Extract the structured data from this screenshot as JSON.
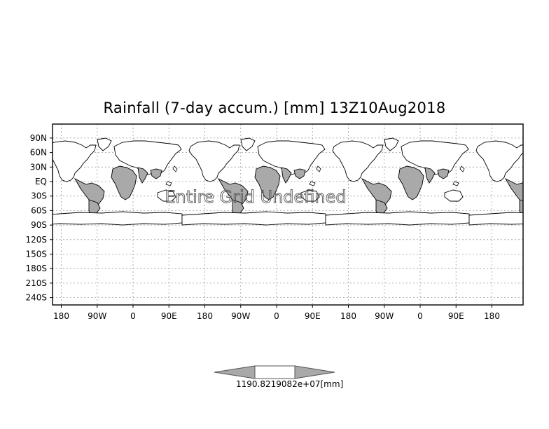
{
  "title": "Rainfall (7-day accum.) [mm] 13Z10Aug2018",
  "overlay_text": "Entire Grid Undefined",
  "colors": {
    "land": "#a9a9a9",
    "coast": "#000000",
    "grid": "#9a9a9a",
    "frame": "#000000",
    "colorbar_left": "#a9a9a9",
    "colorbar_mid": "#ffffff",
    "colorbar_right": "#a9a9a9"
  },
  "map": {
    "projection": "latlon",
    "longitude_range": [
      -210,
      440
    ],
    "latitude_range": [
      -250,
      110
    ],
    "gridlines": true,
    "grid_style": "dotted",
    "y_ticks": [
      {
        "lat": 90,
        "label": "90N"
      },
      {
        "lat": 60,
        "label": "60N"
      },
      {
        "lat": 30,
        "label": "30N"
      },
      {
        "lat": 0,
        "label": "EQ"
      },
      {
        "lat": -30,
        "label": "30S"
      },
      {
        "lat": -60,
        "label": "60S"
      },
      {
        "lat": -90,
        "label": "90S"
      },
      {
        "lat": -120,
        "label": "120S"
      },
      {
        "lat": -150,
        "label": "150S"
      },
      {
        "lat": -180,
        "label": "180S"
      },
      {
        "lat": -210,
        "label": "210S"
      },
      {
        "lat": -240,
        "label": "240S"
      }
    ],
    "x_ticks": [
      {
        "lon": -180,
        "label": "180"
      },
      {
        "lon": -90,
        "label": "90W"
      },
      {
        "lon": 0,
        "label": "0"
      },
      {
        "lon": 90,
        "label": "90E"
      },
      {
        "lon": 180,
        "label": "180"
      },
      {
        "lon": 270,
        "label": "90W"
      },
      {
        "lon": 360,
        "label": "0"
      },
      {
        "lon": 450,
        "label": "90E"
      },
      {
        "lon": 540,
        "label": "180"
      },
      {
        "lon": 630,
        "label": "90W"
      },
      {
        "lon": 720,
        "label": "0"
      },
      {
        "lon": 810,
        "label": "90E"
      },
      {
        "lon": 900,
        "label": "180"
      }
    ]
  },
  "colorbar": {
    "label_text": "1190.8219082e+07[mm]",
    "overlapping_values": [
      "1190.82",
      "1.19082e+07"
    ],
    "unit": "[mm]"
  }
}
